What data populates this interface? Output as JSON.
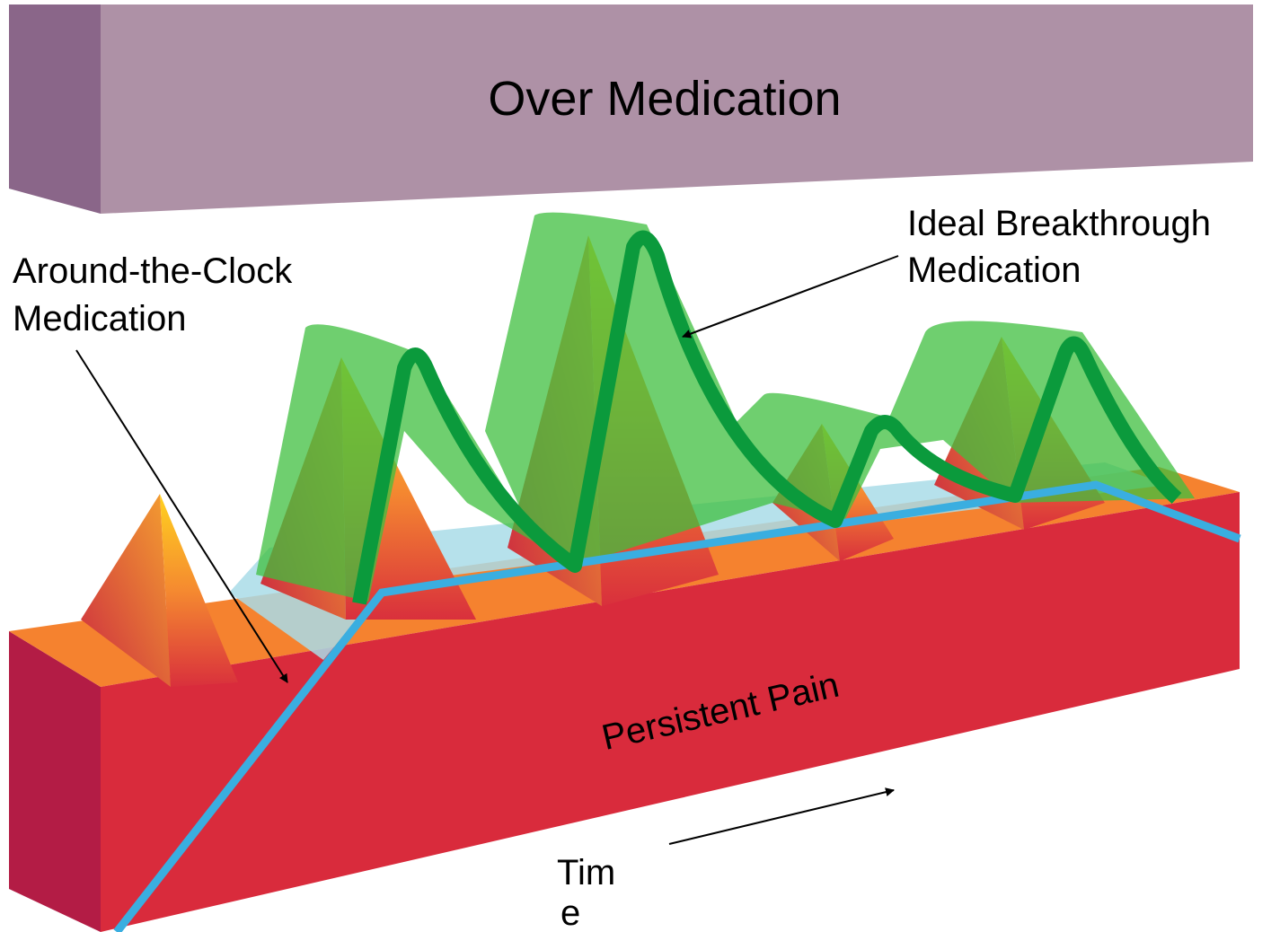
{
  "header": {
    "title": "Over Medication"
  },
  "labels": {
    "breakthrough": [
      "Ideal Breakthrough",
      "Medication"
    ],
    "around_the_clock": [
      "Around-the-Clock",
      "Medication"
    ],
    "persistent": "Persistent Pain",
    "time": [
      "Tim",
      "e"
    ]
  }
}
